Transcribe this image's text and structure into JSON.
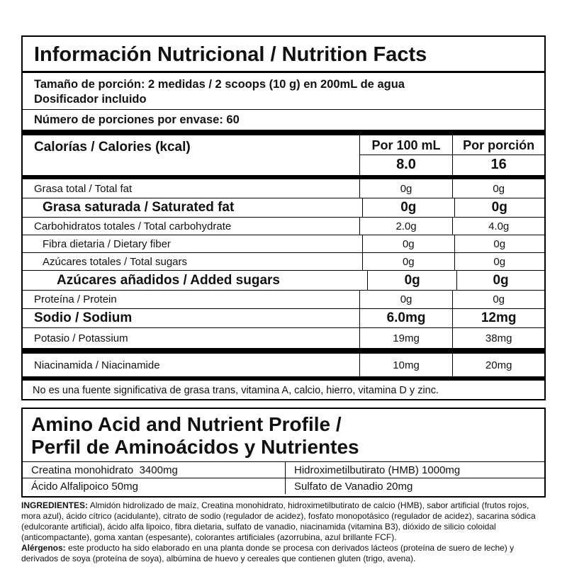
{
  "header": {
    "title": "Información Nutricional / Nutrition Facts"
  },
  "serving": {
    "size": "Tamaño de porción: 2 medidas / 2 scoops (10 g) en 200mL de agua",
    "dispenser": "Dosificador incluido",
    "servings_per_container": "Número de porciones por envase: 60"
  },
  "calories": {
    "label": "Calorías / Calories (kcal)",
    "per_100ml_header": "Por 100 mL",
    "per_serving_header": "Por porción",
    "per_100ml": "8.0",
    "per_serving": "16"
  },
  "nutrients": [
    {
      "label": "Grasa total / Total fat",
      "per_100ml": "0g",
      "per_serving": "0g"
    },
    {
      "label": "Grasa saturada / Saturated fat",
      "per_100ml": "0g",
      "per_serving": "0g"
    },
    {
      "label": "Carbohidratos totales / Total carbohydrate",
      "per_100ml": "2.0g",
      "per_serving": "4.0g"
    },
    {
      "label": "Fibra dietaria / Dietary fiber",
      "per_100ml": "0g",
      "per_serving": "0g"
    },
    {
      "label": "Azúcares totales / Total sugars",
      "per_100ml": "0g",
      "per_serving": "0g"
    },
    {
      "label": "Azúcares añadidos / Added sugars",
      "per_100ml": "0g",
      "per_serving": "0g"
    },
    {
      "label": "Proteína / Protein",
      "per_100ml": "0g",
      "per_serving": "0g"
    },
    {
      "label": "Sodio / Sodium",
      "per_100ml": "6.0mg",
      "per_serving": "12mg"
    },
    {
      "label": "Potasio / Potassium",
      "per_100ml": "19mg",
      "per_serving": "38mg"
    }
  ],
  "vitamins": [
    {
      "label": "Niacinamida / Niacinamide",
      "per_100ml": "10mg",
      "per_serving": "20mg"
    }
  ],
  "footnote": "No es una fuente significativa de grasa trans, vitamina A, calcio, hierro, vitamina D y zinc.",
  "amino_profile": {
    "title_line1": "Amino Acid and Nutrient Profile /",
    "title_line2": "Perfil de Aminoácidos y Nutrientes",
    "rows": [
      [
        "Creatina monohidrato  3400mg",
        "Hidroximetilbutirato (HMB) 1000mg"
      ],
      [
        "Ácido Alfalipoico 50mg",
        "Sulfato de Vanadio 20mg"
      ]
    ]
  },
  "ingredients": {
    "label": "INGREDIENTES:",
    "text": "Almidón hidrolizado de maíz, Creatina monohidrato, hidroximetilbutirato de calcio (HMB), sabor artificial (frutos rojos, mora azul), ácido cítrico (acidulante), citrato de sodio (regulador de acidez), fosfato monopotásico (regulador de acidez), sacarina sódica (edulcorante artificial), ácido alfa lipoico, fibra dietaria, sulfato de vanadio, niacinamida (vitamina B3), dióxido de silicio coloidal (anticompactante), goma xantan (espesante), colorantes artificiales (azorrubina, azul brillante FCF)."
  },
  "allergens": {
    "label": "Alérgenos:",
    "text": "este producto ha sido elaborado en una planta donde se procesa con derivados lácteos (proteína de suero de leche) y derivados de soya (proteína de soya), albúmina de huevo y cereales que contienen gluten (trigo, avena)."
  }
}
